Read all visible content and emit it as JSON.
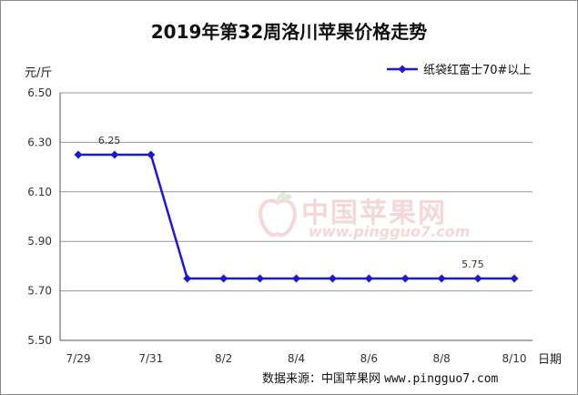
{
  "chart_data": {
    "type": "line",
    "title": "2019年第32周洛川苹果价格走势",
    "ylabel": "元/斤",
    "xlabel": "日期",
    "ylim": [
      5.5,
      6.5
    ],
    "yticks": [
      "6.50",
      "6.30",
      "6.10",
      "5.90",
      "5.70",
      "5.50"
    ],
    "x": [
      "7/29",
      "7/30",
      "7/31",
      "8/1",
      "8/2",
      "8/3",
      "8/4",
      "8/5",
      "8/6",
      "8/7",
      "8/8",
      "8/9",
      "8/10"
    ],
    "xtick_labels": [
      "7/29",
      "7/31",
      "8/2",
      "8/4",
      "8/6",
      "8/8",
      "8/10"
    ],
    "series": [
      {
        "name": "纸袋红富士70#以上",
        "color": "#1a1ad6",
        "values": [
          6.25,
          6.25,
          6.25,
          5.75,
          5.75,
          5.75,
          5.75,
          5.75,
          5.75,
          5.75,
          5.75,
          5.75,
          5.75
        ]
      }
    ],
    "data_labels": [
      {
        "index": 1,
        "text": "6.25"
      },
      {
        "index": 11,
        "text": "5.75"
      }
    ],
    "grid": "horizontal",
    "legend_position": "top-right"
  },
  "source": {
    "label": "数据来源：中国苹果网",
    "url": "www.pingguo7.com"
  },
  "watermark": {
    "cn": "中国苹果网",
    "en": "www.pingguo7.com"
  }
}
